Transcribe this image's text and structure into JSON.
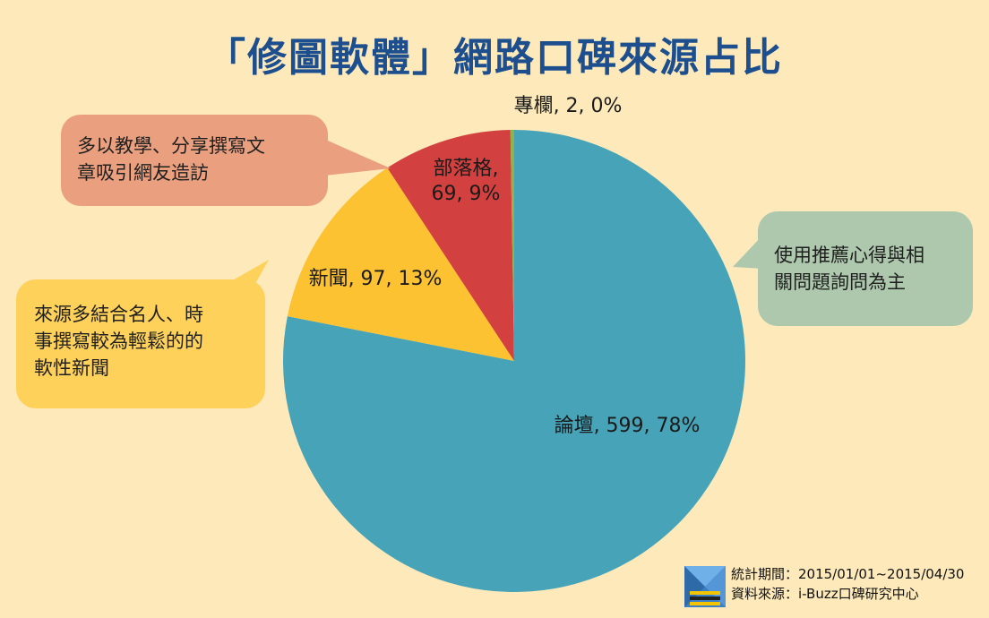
{
  "title": "「修圖軟體」網路口碑來源占比",
  "colors": {
    "forum": "#46a3b8",
    "news": "#fcc232",
    "blog": "#d2413f",
    "column": "#90b24a",
    "title": "#1d4f8f",
    "background": "#fde9ba"
  },
  "chart_data": {
    "type": "pie",
    "title": "「修圖軟體」網路口碑來源占比",
    "slices": [
      {
        "name": "論壇",
        "value": 599,
        "percent": 78,
        "label": "論壇, 599, 78%",
        "color": "#46a3b8"
      },
      {
        "name": "新聞",
        "value": 97,
        "percent": 13,
        "label": "新聞, 97, 13%",
        "color": "#fcc232"
      },
      {
        "name": "部落格",
        "value": 69,
        "percent": 9,
        "label_lines": [
          "部落格,",
          "69, 9%"
        ],
        "color": "#d2413f"
      },
      {
        "name": "專欄",
        "value": 2,
        "percent": 0,
        "label": "專欄, 2, 0%",
        "color": "#90b24a"
      }
    ]
  },
  "bubbles": {
    "blog": [
      "多以教學、分享撰寫文",
      "章吸引網友造訪"
    ],
    "news": [
      "來源多結合名人、時",
      "事撰寫較為輕鬆的的",
      "軟性新聞"
    ],
    "forum": [
      "使用推薦心得與相",
      "關問題詢問為主"
    ]
  },
  "footer": {
    "period": "統計期間：2015/01/01~2015/04/30",
    "source": "資料來源：i-Buzz口碑研究中心"
  }
}
